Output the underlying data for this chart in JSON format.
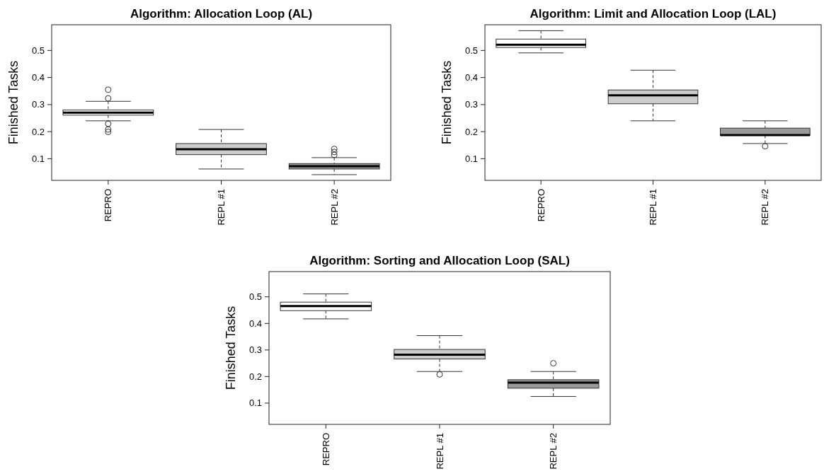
{
  "chart_data": [
    {
      "type": "box",
      "title": "Algorithm: Allocation Loop (AL)",
      "ylabel": "Finished Tasks",
      "categories": [
        "REPRO",
        "REPL #1",
        "REPL #2"
      ],
      "colors": [
        "#ffffff",
        "#cccccc",
        "#999999"
      ],
      "ylim": [
        0.02,
        0.595
      ],
      "yticks": [
        0.1,
        0.2,
        0.3,
        0.4,
        0.5
      ],
      "boxes": [
        {
          "low": 0.24,
          "q1": 0.261,
          "median": 0.27,
          "q3": 0.28,
          "high": 0.312,
          "outliers": [
            0.355,
            0.323,
            0.229,
            0.208,
            0.199
          ]
        },
        {
          "low": 0.062,
          "q1": 0.115,
          "median": 0.135,
          "q3": 0.156,
          "high": 0.208
        },
        {
          "low": 0.041,
          "q1": 0.062,
          "median": 0.072,
          "q3": 0.082,
          "high": 0.104,
          "outliers": [
            0.136,
            0.125,
            0.114
          ]
        }
      ]
    },
    {
      "type": "box",
      "title": "Algorithm: Limit and Allocation Loop (LAL)",
      "ylabel": "Finished Tasks",
      "categories": [
        "REPRO",
        "REPL #1",
        "REPL #2"
      ],
      "colors": [
        "#ffffff",
        "#cccccc",
        "#999999"
      ],
      "ylim": [
        0.02,
        0.595
      ],
      "yticks": [
        0.1,
        0.2,
        0.3,
        0.4,
        0.5
      ],
      "boxes": [
        {
          "low": 0.491,
          "q1": 0.511,
          "median": 0.521,
          "q3": 0.542,
          "high": 0.573
        },
        {
          "low": 0.24,
          "q1": 0.303,
          "median": 0.334,
          "q3": 0.354,
          "high": 0.427
        },
        {
          "low": 0.156,
          "q1": 0.186,
          "median": 0.187,
          "q3": 0.213,
          "high": 0.24,
          "outliers": [
            0.146
          ]
        }
      ]
    },
    {
      "type": "box",
      "title": "Algorithm: Sorting and Allocation Loop (SAL)",
      "ylabel": "Finished Tasks",
      "categories": [
        "REPRO",
        "REPL #1",
        "REPL #2"
      ],
      "colors": [
        "#ffffff",
        "#cccccc",
        "#999999"
      ],
      "ylim": [
        0.02,
        0.595
      ],
      "yticks": [
        0.1,
        0.2,
        0.3,
        0.4,
        0.5
      ],
      "boxes": [
        {
          "low": 0.417,
          "q1": 0.448,
          "median": 0.465,
          "q3": 0.48,
          "high": 0.511
        },
        {
          "low": 0.219,
          "q1": 0.266,
          "median": 0.282,
          "q3": 0.302,
          "high": 0.354,
          "outliers": [
            0.208
          ]
        },
        {
          "low": 0.125,
          "q1": 0.156,
          "median": 0.177,
          "q3": 0.188,
          "high": 0.219,
          "outliers": [
            0.25
          ]
        }
      ]
    }
  ]
}
